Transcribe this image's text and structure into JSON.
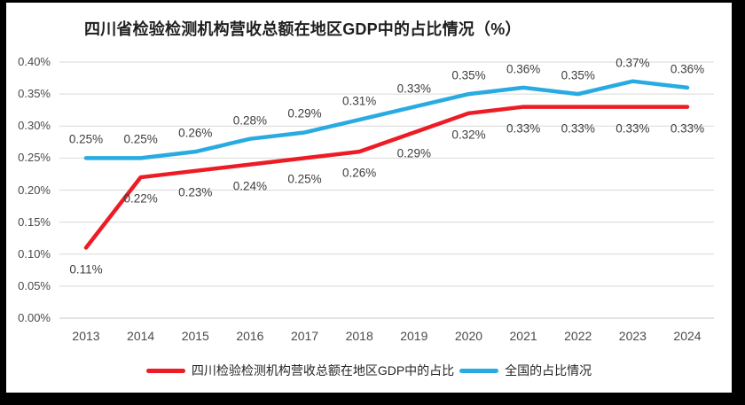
{
  "chart_data": {
    "type": "line",
    "title": "四川省检验检测机构营收总额在地区GDP中的占比情况（%）",
    "x": [
      "2013",
      "2014",
      "2015",
      "2016",
      "2017",
      "2018",
      "2019",
      "2020",
      "2021",
      "2022",
      "2023",
      "2024"
    ],
    "series": [
      {
        "key": "sichuan",
        "name": "四川检验检测机构营收总额在地区GDP中的占比",
        "color": "#ED1C24",
        "values": [
          0.11,
          0.22,
          0.23,
          0.24,
          0.25,
          0.26,
          0.29,
          0.32,
          0.33,
          0.33,
          0.33,
          0.33
        ],
        "labels": [
          "0.11%",
          "0.22%",
          "0.23%",
          "0.24%",
          "0.25%",
          "0.26%",
          "0.29%",
          "0.32%",
          "0.33%",
          "0.33%",
          "0.33%",
          "0.33%"
        ],
        "label_position": "below"
      },
      {
        "key": "national",
        "name": "全国的占比情况",
        "color": "#29ABE2",
        "values": [
          0.25,
          0.25,
          0.26,
          0.28,
          0.29,
          0.31,
          0.33,
          0.35,
          0.36,
          0.35,
          0.37,
          0.36
        ],
        "labels": [
          "0.25%",
          "0.25%",
          "0.26%",
          "0.28%",
          "0.29%",
          "0.31%",
          "0.33%",
          "0.35%",
          "0.36%",
          "0.35%",
          "0.37%",
          "0.36%"
        ],
        "label_position": "above"
      }
    ],
    "ylim": [
      0,
      0.4
    ],
    "ytick_step": 0.05,
    "ytick_labels": [
      "0.00%",
      "0.05%",
      "0.10%",
      "0.15%",
      "0.20%",
      "0.25%",
      "0.30%",
      "0.35%",
      "0.40%"
    ],
    "grid": true,
    "legend_position": "bottom",
    "theme": {
      "gridline": "#D9D9D9",
      "axis_line": "#C8C8C8",
      "tick_text": "#4A4A4A",
      "data_label_text": "#3D3D3D",
      "title_text": "#1F1F1F",
      "legend_text": "#262626",
      "chart_background": "#FFFFFF",
      "page_background": "#000000"
    }
  }
}
